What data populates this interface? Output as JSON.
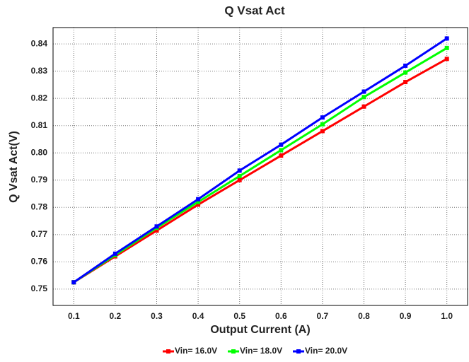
{
  "chart_data": {
    "type": "line",
    "title": "Q Vsat Act",
    "x_label": "Output Current (A)",
    "y_label": "Q Vsat Act(V)",
    "x": [
      0.1,
      0.2,
      0.3,
      0.4,
      0.5,
      0.6,
      0.7,
      0.8,
      0.9,
      1.0
    ],
    "series": [
      {
        "name": "Vin= 16.0V",
        "color": "#ff0000",
        "values": [
          0.7525,
          0.762,
          0.7715,
          0.781,
          0.79,
          0.799,
          0.808,
          0.817,
          0.826,
          0.8345
        ]
      },
      {
        "name": "Vin= 18.0V",
        "color": "#00ff00",
        "values": [
          0.7525,
          0.7625,
          0.7725,
          0.782,
          0.7915,
          0.801,
          0.8105,
          0.8205,
          0.8295,
          0.8385
        ]
      },
      {
        "name": "Vin= 20.0V",
        "color": "#0000ff",
        "values": [
          0.7525,
          0.763,
          0.773,
          0.783,
          0.7935,
          0.803,
          0.813,
          0.8225,
          0.832,
          0.842
        ]
      }
    ],
    "xlim": [
      0.05,
      1.05
    ],
    "xticks": [
      0.1,
      0.2,
      0.3,
      0.4,
      0.5,
      0.6,
      0.7,
      0.8,
      0.9,
      {
        "value": 1.0,
        "label": "1.0"
      }
    ],
    "ylim": [
      0.744,
      0.846
    ],
    "yticks": [
      0.75,
      0.76,
      0.77,
      0.78,
      0.79,
      {
        "value": 0.8,
        "label": "0.80"
      },
      0.81,
      0.82,
      0.83,
      0.84
    ],
    "grid": true,
    "legend": "bottom"
  }
}
